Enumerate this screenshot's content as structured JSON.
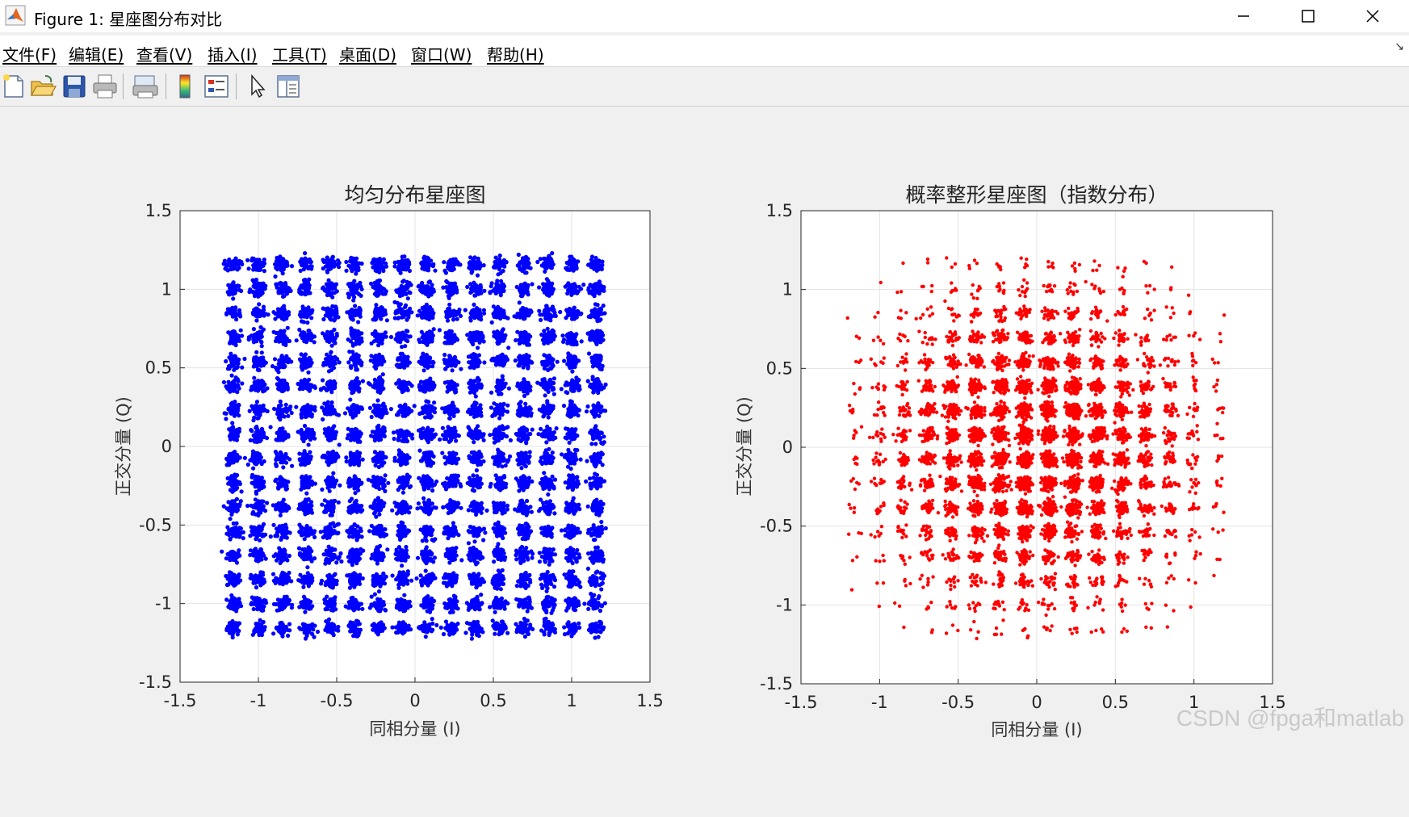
{
  "window": {
    "title": "Figure 1: 星座图分布对比",
    "controls": [
      "minimize-icon",
      "maximize-icon",
      "close-icon"
    ]
  },
  "menu": {
    "items": [
      "文件(F)",
      "编辑(E)",
      "查看(V)",
      "插入(I)",
      "工具(T)",
      "桌面(D)",
      "窗口(W)",
      "帮助(H)"
    ]
  },
  "toolbar": {
    "icons": [
      "new-figure-icon",
      "open-file-icon",
      "save-icon",
      "print-icon",
      "print-preview-icon",
      "colorbar-icon",
      "legend-icon",
      "edit-pointer-icon",
      "property-inspector-icon"
    ]
  },
  "chart_data": [
    {
      "type": "scatter",
      "title": "均匀分布星座图",
      "xlabel": "同相分量 (I)",
      "ylabel": "正交分量 (Q)",
      "xlim": [
        -1.5,
        1.5
      ],
      "ylim": [
        -1.5,
        1.5
      ],
      "xticks": [
        "-1.5",
        "-1",
        "-0.5",
        "0",
        "0.5",
        "1",
        "1.5"
      ],
      "yticks": [
        "1.5",
        "1",
        "0.5",
        "0",
        "-0.5",
        "-1",
        "-1.5"
      ],
      "grid": true,
      "color": "#0000ff",
      "levels": [
        -1.157,
        -1.003,
        -0.848,
        -0.694,
        -0.54,
        -0.386,
        -0.231,
        -0.077,
        0.077,
        0.231,
        0.386,
        0.54,
        0.694,
        0.848,
        1.003,
        1.157
      ],
      "distribution": "uniform",
      "noise_sigma": 0.022
    },
    {
      "type": "scatter",
      "title": "概率整形星座图（指数分布）",
      "xlabel": "同相分量 (I)",
      "ylabel": "正交分量 (Q)",
      "xlim": [
        -1.5,
        1.5
      ],
      "ylim": [
        -1.5,
        1.5
      ],
      "xticks": [
        "-1.5",
        "-1",
        "-0.5",
        "0",
        "0.5",
        "1",
        "1.5"
      ],
      "yticks": [
        "1.5",
        "1",
        "0.5",
        "0",
        "-0.5",
        "-1",
        "-1.5"
      ],
      "grid": true,
      "color": "#ff0000",
      "levels": [
        -1.157,
        -1.003,
        -0.848,
        -0.694,
        -0.54,
        -0.386,
        -0.231,
        -0.077,
        0.077,
        0.231,
        0.386,
        0.54,
        0.694,
        0.848,
        1.003,
        1.157
      ],
      "distribution": "exponential",
      "noise_sigma": 0.022
    }
  ],
  "watermark": "CSDN @fpga和matlab"
}
